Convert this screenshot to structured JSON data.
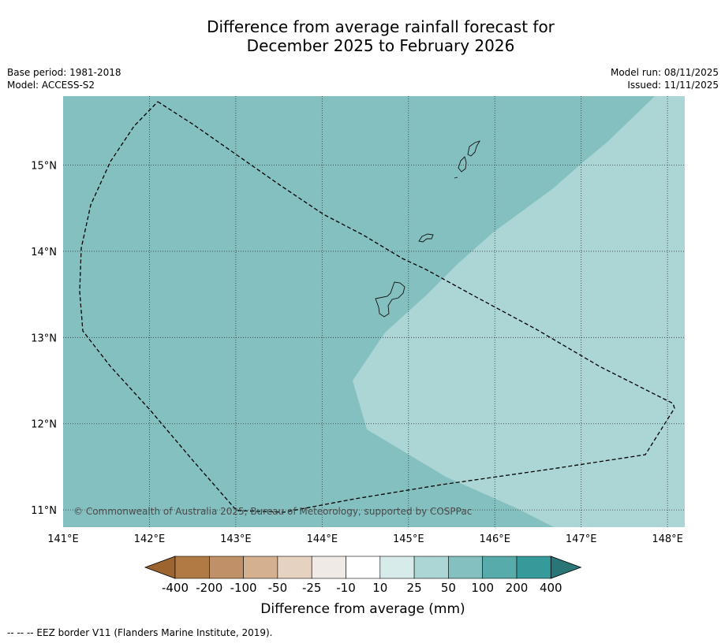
{
  "title_line1": "Difference from average rainfall forecast for",
  "title_line2": "December 2025 to February 2026",
  "meta_left": {
    "base_period": "Base period: 1981-2018",
    "model": "Model: ACCESS-S2"
  },
  "meta_right": {
    "model_run": "Model run: 08/11/2025",
    "issued": "Issued: 11/11/2025"
  },
  "map": {
    "lon_range": [
      141.0,
      148.2
    ],
    "lat_range": [
      10.8,
      15.8
    ],
    "lon_ticks": [
      141,
      142,
      143,
      144,
      145,
      146,
      147,
      148
    ],
    "lat_ticks": [
      11,
      12,
      13,
      14,
      15
    ],
    "lon_labels": [
      "141°E",
      "142°E",
      "143°E",
      "144°E",
      "145°E",
      "146°E",
      "147°E",
      "148°E"
    ],
    "lat_labels": [
      "11°N",
      "12°N",
      "13°N",
      "14°N",
      "15°N"
    ],
    "copyright": "© Commonwealth of Australia 2025, Bureau of Meteorology, supported by COSPPac",
    "colors": {
      "zone_50_100": "#84c0c0",
      "zone_25_50": "#acd5d5"
    }
  },
  "colorbar": {
    "labels": [
      "-400",
      "-200",
      "-100",
      "-50",
      "-25",
      "-10",
      "10",
      "25",
      "50",
      "100",
      "200",
      "400"
    ],
    "colors": [
      "#9b6430",
      "#b07a44",
      "#c09068",
      "#d4b090",
      "#e6d2c0",
      "#efeae5",
      "#ffffff",
      "#d7ebeb",
      "#acd5d5",
      "#84c0c0",
      "#58abab",
      "#369a9a",
      "#2a7575"
    ],
    "title": "Difference from average (mm)"
  },
  "footnote": "--  --  -- EEZ border V11 (Flanders Marine Institute, 2019)."
}
